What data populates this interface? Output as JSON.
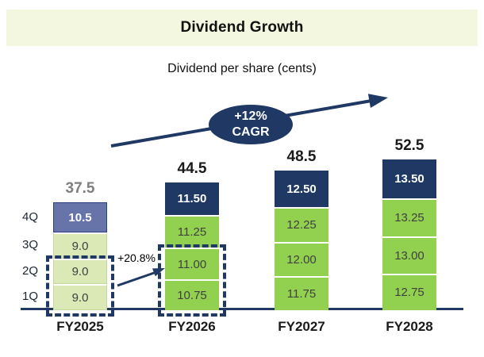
{
  "title": "Dividend Growth",
  "subtitle": "Dividend per share (cents)",
  "cagr_badge": {
    "line1": "+12%",
    "line2": "CAGR"
  },
  "quarter_axis": [
    "4Q",
    "3Q",
    "2Q",
    "1Q"
  ],
  "colors": {
    "banner_bg": "#f3f7e0",
    "navy": "#1f3864",
    "bright_green": "#92d050",
    "pale_green": "#dbe9b6",
    "pale_green_border": "#c6d99c",
    "slate_blue": "#6674a9",
    "slate_border": "#2d3f7d",
    "grey_total": "#7f7f7f",
    "text_dark": "#1a1a1a",
    "segment_text": "#404040",
    "white": "#ffffff"
  },
  "chart_data": {
    "type": "bar",
    "stacked": true,
    "title": "Dividend Growth",
    "subtitle": "Dividend per share (cents)",
    "value_unit": "cents",
    "gridlines": false,
    "legend_position": "none",
    "ylim": [
      0,
      52.5
    ],
    "categories": [
      "FY2025",
      "FY2026",
      "FY2027",
      "FY2028"
    ],
    "series": [
      {
        "name": "1Q",
        "values": [
          9.0,
          10.75,
          11.75,
          12.75
        ],
        "labels": [
          "9.0",
          "10.75",
          "11.75",
          "12.75"
        ],
        "fills": [
          "#dbe9b6",
          "#92d050",
          "#92d050",
          "#92d050"
        ],
        "text_colors": [
          "#404040",
          "#404040",
          "#404040",
          "#404040"
        ],
        "border_colors": [
          "#c6d99c",
          null,
          null,
          null
        ],
        "bold": false
      },
      {
        "name": "2Q",
        "values": [
          9.0,
          11.0,
          12.0,
          13.0
        ],
        "labels": [
          "9.0",
          "11.00",
          "12.00",
          "13.00"
        ],
        "fills": [
          "#dbe9b6",
          "#92d050",
          "#92d050",
          "#92d050"
        ],
        "text_colors": [
          "#404040",
          "#404040",
          "#404040",
          "#404040"
        ],
        "border_colors": [
          "#c6d99c",
          null,
          null,
          null
        ],
        "bold": false
      },
      {
        "name": "3Q",
        "values": [
          9.0,
          11.25,
          12.25,
          13.25
        ],
        "labels": [
          "9.0",
          "11.25",
          "12.25",
          "13.25"
        ],
        "fills": [
          "#dbe9b6",
          "#92d050",
          "#92d050",
          "#92d050"
        ],
        "text_colors": [
          "#404040",
          "#404040",
          "#404040",
          "#404040"
        ],
        "border_colors": [
          "#c6d99c",
          null,
          null,
          null
        ],
        "bold": false
      },
      {
        "name": "4Q",
        "values": [
          10.5,
          11.5,
          12.5,
          13.5
        ],
        "labels": [
          "10.5",
          "11.50",
          "12.50",
          "13.50"
        ],
        "fills": [
          "#6674a9",
          "#1f3864",
          "#1f3864",
          "#1f3864"
        ],
        "text_colors": [
          "#ffffff",
          "#ffffff",
          "#ffffff",
          "#ffffff"
        ],
        "border_colors": [
          "#2d3f7d",
          null,
          null,
          null
        ],
        "bold": true
      }
    ],
    "totals": {
      "labels": [
        "37.5",
        "44.5",
        "48.5",
        "52.5"
      ],
      "colors": [
        "#7f7f7f",
        "#1a1a1a",
        "#1a1a1a",
        "#1a1a1a"
      ]
    },
    "highlight": {
      "categories": [
        "FY2025",
        "FY2026"
      ],
      "quarters": [
        "1Q",
        "2Q"
      ],
      "growth_label": "+20.8%"
    },
    "annotations": [
      "+12% CAGR",
      "+20.8%"
    ]
  }
}
